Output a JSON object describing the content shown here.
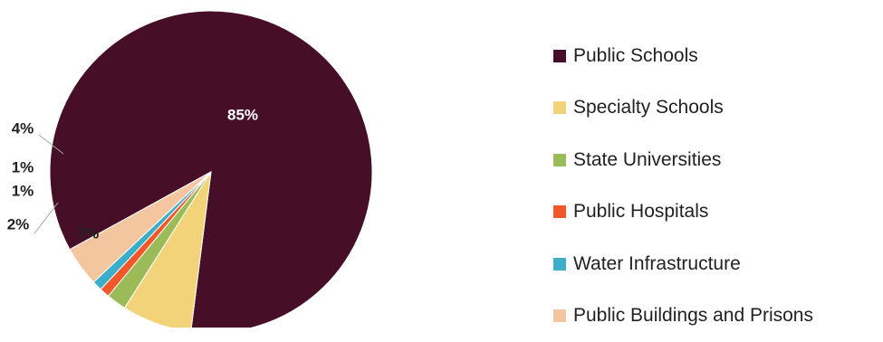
{
  "chart_data": {
    "type": "pie",
    "categories": [
      "Public Schools",
      "Specialty Schools",
      "State Universities",
      "Public Hospitals",
      "Water Infrastructure",
      "Public Buildings and Prisons"
    ],
    "values": [
      85,
      7,
      2,
      1,
      1,
      4
    ],
    "value_labels": [
      "85%",
      "7%",
      "2%",
      "1%",
      "1%",
      "4%"
    ],
    "colors": [
      "#470e28",
      "#f3d37a",
      "#9bbb59",
      "#f2572a",
      "#3daec8",
      "#f4c6a0"
    ],
    "title": "",
    "legend_position": "right"
  }
}
